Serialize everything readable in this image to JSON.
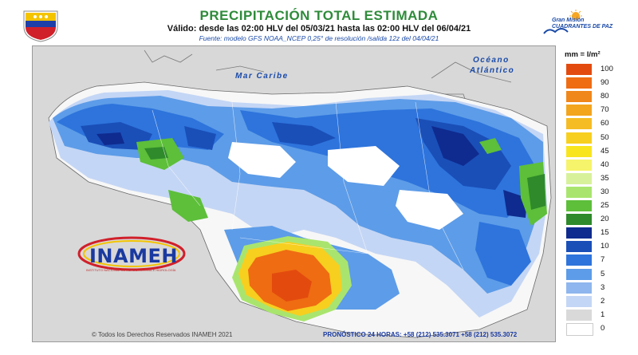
{
  "header": {
    "title": "PRECIPITACIÓN TOTAL ESTIMADA",
    "valid_text": "Válido: desde las 02:00 HLV del 05/03/21 hasta las 02:00 HLV del 06/04/21",
    "source_text": "Fuente: modelo GFS NOAA_NCEP 0,25° de resolución /salida 12z del 04/04/21"
  },
  "right_logo": {
    "line1": "Gran Misión",
    "line2": "CUADRANTES DE PAZ"
  },
  "map": {
    "sea_label": "Mar Caribe",
    "ocean_label_1": "Océano",
    "ocean_label_2": "Atlántico"
  },
  "inameh_logo": {
    "name": "INAMEH",
    "subtitle": "INSTITUTO NACIONAL DE METEOROLOGÍA E HIDROLOGÍA"
  },
  "footer": {
    "copyright": "© Todos los Derechos Reservados INAMEH 2021",
    "forecast_phone": "PRONÓSTICO 24 HORAS: +58 (212) 535.3071 +58 (212) 535.3072"
  },
  "legend": {
    "unit": "mm = l/m²",
    "items": [
      {
        "label": "100",
        "color": "#e34b0e"
      },
      {
        "label": "90",
        "color": "#ef6c12"
      },
      {
        "label": "80",
        "color": "#f0871a"
      },
      {
        "label": "70",
        "color": "#f3a51e"
      },
      {
        "label": "60",
        "color": "#f6bc24"
      },
      {
        "label": "50",
        "color": "#f7cf1f"
      },
      {
        "label": "45",
        "color": "#f8e51e"
      },
      {
        "label": "40",
        "color": "#f6f46a"
      },
      {
        "label": "35",
        "color": "#d7f19b"
      },
      {
        "label": "30",
        "color": "#a9e56e"
      },
      {
        "label": "25",
        "color": "#5dbf3a"
      },
      {
        "label": "20",
        "color": "#2e8a2a"
      },
      {
        "label": "15",
        "color": "#0f2b8f"
      },
      {
        "label": "10",
        "color": "#1a4fb8"
      },
      {
        "label": "7",
        "color": "#2e74dc"
      },
      {
        "label": "5",
        "color": "#5d9ce8"
      },
      {
        "label": "3",
        "color": "#8fb6ee"
      },
      {
        "label": "2",
        "color": "#c4d6f5"
      },
      {
        "label": "1",
        "color": "#d9d9d9"
      },
      {
        "label": "0",
        "color": "#ffffff"
      }
    ]
  }
}
